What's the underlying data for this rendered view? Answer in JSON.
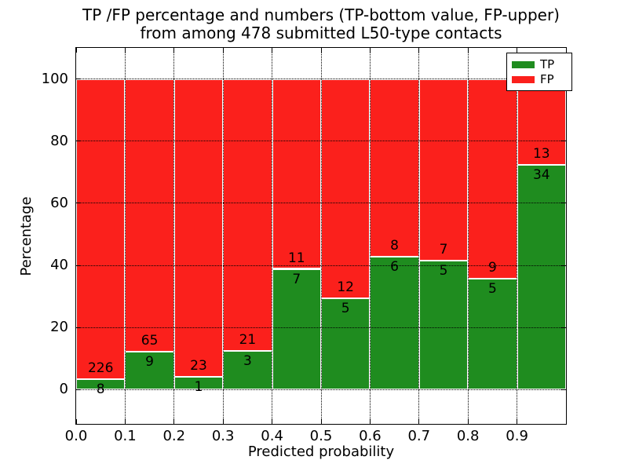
{
  "title": {
    "line1": "TP /FP percentage and numbers (TP-bottom value, FP-upper)",
    "line2": "from among 478 submitted L50-type contacts"
  },
  "axes": {
    "ylabel": "Percentage",
    "xlabel": "Predicted probability"
  },
  "legend": {
    "items": [
      {
        "label": "TP"
      },
      {
        "label": "FP"
      }
    ]
  },
  "chart_data": {
    "type": "bar",
    "stacked": true,
    "title": "TP /FP percentage and numbers (TP-bottom value, FP-upper) from among 478 submitted L50-type contacts",
    "xlabel": "Predicted probability",
    "ylabel": "Percentage",
    "total_contacts": 478,
    "bins": [
      0.0,
      0.1,
      0.2,
      0.3,
      0.4,
      0.5,
      0.6,
      0.7,
      0.8,
      0.9
    ],
    "bin_width": 0.1,
    "series": [
      {
        "name": "TP",
        "color": "#1f8c1f",
        "counts": [
          8,
          9,
          1,
          3,
          7,
          5,
          6,
          5,
          5,
          34
        ]
      },
      {
        "name": "FP",
        "color": "#fb201c",
        "counts": [
          226,
          65,
          23,
          21,
          11,
          12,
          8,
          7,
          9,
          13
        ]
      }
    ],
    "tp_percentages": [
      3.4,
      12.2,
      4.2,
      12.5,
      38.9,
      29.4,
      42.9,
      41.7,
      35.7,
      72.3
    ],
    "ylim": [
      -11,
      110
    ],
    "xlim": [
      0,
      1
    ],
    "yticks": [
      {
        "v": 0,
        "label": "0"
      },
      {
        "v": 20,
        "label": "20"
      },
      {
        "v": 40,
        "label": "40"
      },
      {
        "v": 60,
        "label": "60"
      },
      {
        "v": 80,
        "label": "80"
      },
      {
        "v": 100,
        "label": "100"
      }
    ],
    "xticks": [
      {
        "v": 0.0,
        "label": "0.0"
      },
      {
        "v": 0.1,
        "label": "0.1"
      },
      {
        "v": 0.2,
        "label": "0.2"
      },
      {
        "v": 0.3,
        "label": "0.3"
      },
      {
        "v": 0.4,
        "label": "0.4"
      },
      {
        "v": 0.5,
        "label": "0.5"
      },
      {
        "v": 0.6,
        "label": "0.6"
      },
      {
        "v": 0.7,
        "label": "0.7"
      },
      {
        "v": 0.8,
        "label": "0.8"
      },
      {
        "v": 0.9,
        "label": "0.9"
      }
    ],
    "grid": "dotted",
    "legend_position": "upper right"
  }
}
